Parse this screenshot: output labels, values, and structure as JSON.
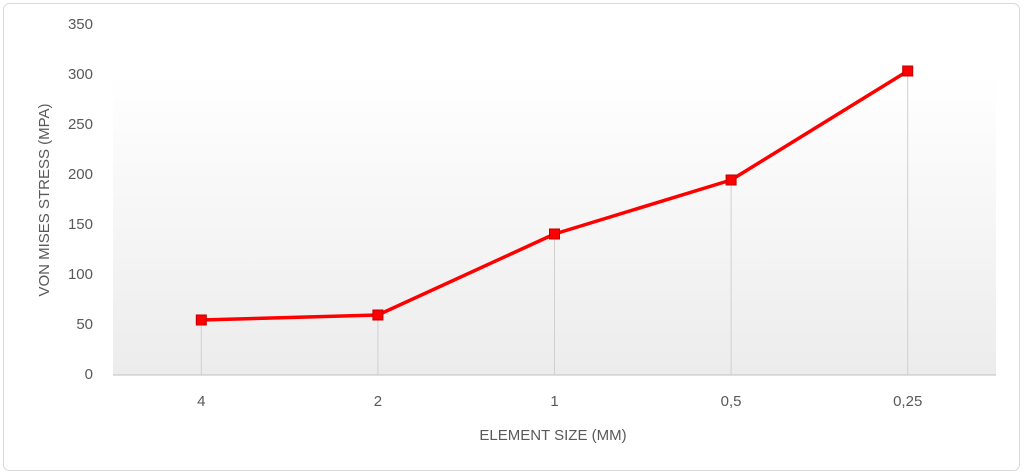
{
  "chart_data": {
    "type": "line",
    "x_label": "ELEMENT SIZE (MM)",
    "y_label": "VON MISES STRESS (MPA)",
    "categories": [
      "4",
      "2",
      "1",
      "0,5",
      "0,25"
    ],
    "values": [
      55,
      60,
      141,
      195,
      304
    ],
    "color": "#ff0000",
    "marker": "square",
    "drop_lines": true,
    "ylim": [
      0,
      350
    ],
    "yticks": [
      0,
      50,
      100,
      150,
      200,
      250,
      300,
      350
    ]
  }
}
